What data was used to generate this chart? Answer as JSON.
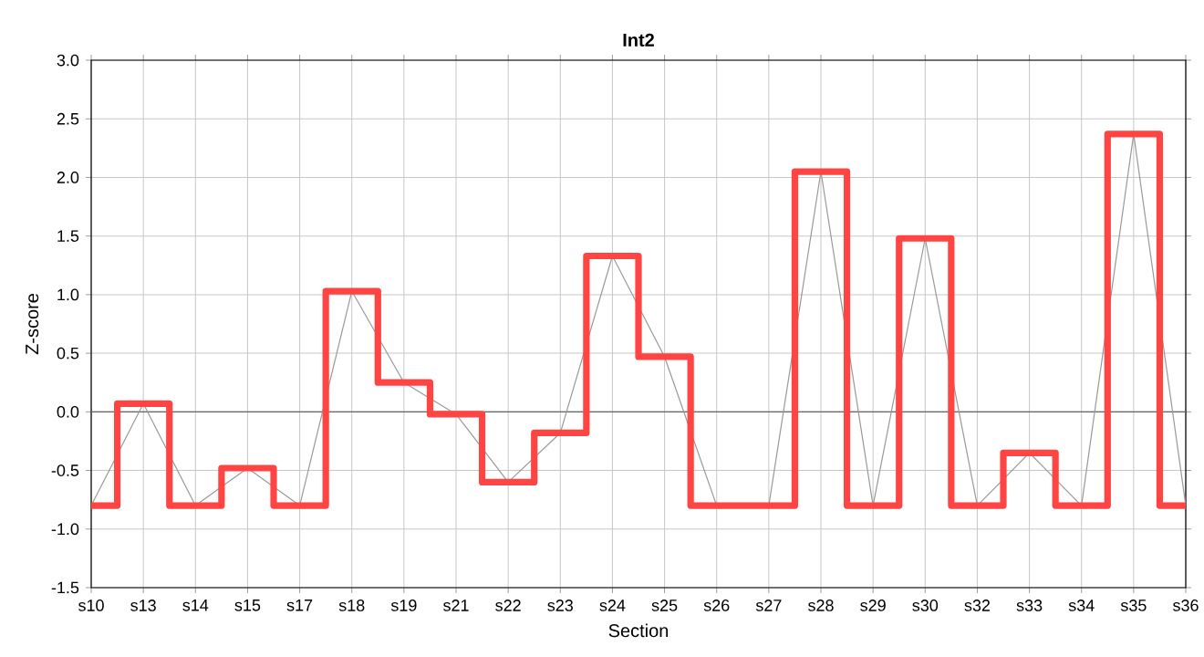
{
  "chart_data": {
    "type": "line",
    "title": "Int2",
    "xlabel": "Section",
    "ylabel": "Z-score",
    "categories": [
      "s10",
      "s13",
      "s14",
      "s15",
      "s17",
      "s18",
      "s19",
      "s21",
      "s22",
      "s23",
      "s24",
      "s25",
      "s26",
      "s27",
      "s28",
      "s29",
      "s30",
      "s32",
      "s33",
      "s34",
      "s35",
      "s36"
    ],
    "series": [
      {
        "color": "#999999",
        "values": [
          -0.8,
          0.07,
          -0.8,
          -0.48,
          -0.8,
          1.03,
          0.25,
          -0.02,
          -0.6,
          -0.18,
          1.33,
          0.47,
          -0.8,
          -0.8,
          2.05,
          -0.8,
          1.48,
          -0.8,
          -0.35,
          -0.8,
          2.37,
          -0.8
        ]
      },
      {
        "type": "step",
        "color": "#ff4444",
        "values": [
          -0.8,
          0.07,
          -0.8,
          -0.48,
          -0.8,
          1.03,
          0.25,
          -0.02,
          -0.6,
          -0.18,
          1.33,
          0.47,
          -0.8,
          -0.8,
          2.05,
          -0.8,
          1.48,
          -0.8,
          -0.35,
          -0.8,
          2.37,
          -0.8
        ]
      }
    ],
    "ylim": [
      -1.5,
      3.0
    ],
    "yticks": [
      {
        "value": -1.5,
        "label": "-1.5"
      },
      {
        "value": -1.0,
        "label": "-1.0"
      },
      {
        "value": -0.5,
        "label": "-0.5"
      },
      {
        "value": 0.0,
        "label": "0.0"
      },
      {
        "value": 0.5,
        "label": "0.5"
      },
      {
        "value": 1.0,
        "label": "1.0"
      },
      {
        "value": 1.5,
        "label": "1.5"
      },
      {
        "value": 2.0,
        "label": "2.0"
      },
      {
        "value": 2.5,
        "label": "2.5"
      },
      {
        "value": 3.0,
        "label": "3.0"
      }
    ],
    "ref_lines": [
      {
        "axis": "y",
        "value": 0,
        "color": "#666666"
      }
    ],
    "grid": true,
    "legend": false,
    "marker": "none"
  }
}
